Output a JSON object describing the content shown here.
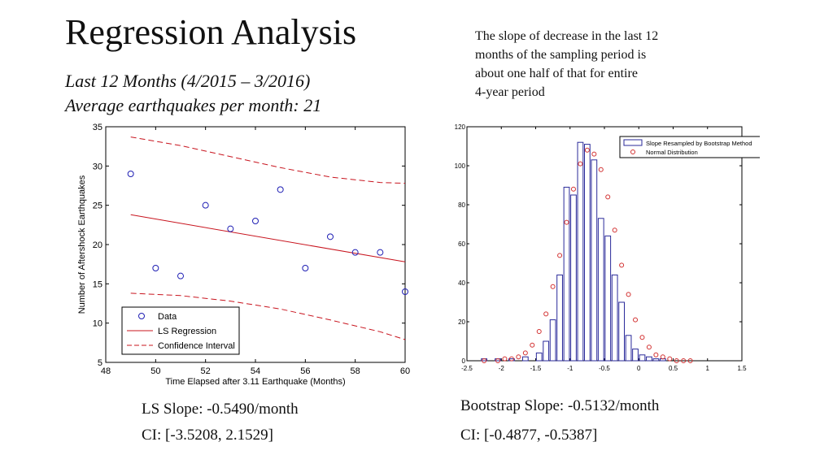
{
  "slide": {
    "title": "Regression Analysis",
    "subtitle_line1": "Last 12 Months (4/2015 – 3/2016)",
    "subtitle_line2": "Average earthquakes per month: 21",
    "note_lines": [
      "The slope of decrease in the last 12",
      "months of the sampling period is",
      "about one half of that for entire",
      "4-year period"
    ],
    "ls_slope": "LS Slope: -0.5490/month",
    "ls_ci": "CI: [-3.5208, 2.1529]",
    "bootstrap_slope": "Bootstrap Slope: -0.5132/month",
    "bootstrap_ci": "CI: [-0.4877, -0.5387]"
  },
  "colors": {
    "data_marker": "#1f1fb4",
    "regression": "#c8141e",
    "bars": "#2a2a9a",
    "normal": "#d23030",
    "axis": "#000000"
  },
  "chart_data": [
    {
      "type": "scatter",
      "xlabel": "Time Elapsed after 3.11 Earthquake (Months)",
      "ylabel": "Number of Aftershock Earthquakes",
      "xlim": [
        48,
        60
      ],
      "ylim": [
        5,
        35
      ],
      "xticks": [
        "48",
        "50",
        "52",
        "54",
        "56",
        "58",
        "60"
      ],
      "yticks": [
        "5",
        "10",
        "15",
        "20",
        "25",
        "30",
        "35"
      ],
      "legend_position": "bottom-left",
      "legend": [
        "Data",
        "LS Regression",
        "Confidence Interval"
      ],
      "points": [
        {
          "x": 49,
          "y": 29
        },
        {
          "x": 50,
          "y": 17
        },
        {
          "x": 51,
          "y": 16
        },
        {
          "x": 52,
          "y": 25
        },
        {
          "x": 53,
          "y": 22
        },
        {
          "x": 54,
          "y": 23
        },
        {
          "x": 55,
          "y": 27
        },
        {
          "x": 56,
          "y": 17
        },
        {
          "x": 57,
          "y": 21
        },
        {
          "x": 58,
          "y": 19
        },
        {
          "x": 59,
          "y": 19
        },
        {
          "x": 60,
          "y": 14
        }
      ],
      "regression": [
        [
          49,
          23.8
        ],
        [
          60,
          17.8
        ]
      ],
      "ci_upper": [
        [
          49,
          33.7
        ],
        [
          51,
          32.6
        ],
        [
          53,
          31.2
        ],
        [
          55,
          29.8
        ],
        [
          57,
          28.6
        ],
        [
          59,
          27.9
        ],
        [
          60,
          27.8
        ]
      ],
      "ci_lower": [
        [
          49,
          13.8
        ],
        [
          51,
          13.5
        ],
        [
          53,
          12.8
        ],
        [
          55,
          11.8
        ],
        [
          57,
          10.4
        ],
        [
          59,
          8.9
        ],
        [
          60,
          7.9
        ]
      ]
    },
    {
      "type": "bar",
      "title": "",
      "xlim": [
        -2.5,
        1.5
      ],
      "ylim": [
        0,
        120
      ],
      "xticks": [
        "-2.5",
        "-2",
        "-1.5",
        "-1",
        "-0.5",
        "0",
        "0.5",
        "1",
        "1.5"
      ],
      "yticks": [
        "0",
        "20",
        "40",
        "60",
        "80",
        "100",
        "120"
      ],
      "legend_position": "top-right",
      "legend": [
        "Slope Resampled by Bootstrap Method",
        "Normal Distribution"
      ],
      "bin_centers": [
        -2.25,
        -2.15,
        -2.05,
        -1.95,
        -1.85,
        -1.75,
        -1.65,
        -1.55,
        -1.45,
        -1.35,
        -1.25,
        -1.15,
        -1.05,
        -0.95,
        -0.85,
        -0.75,
        -0.65,
        -0.55,
        -0.45,
        -0.35,
        -0.25,
        -0.15,
        -0.05,
        0.05,
        0.15,
        0.25,
        0.35,
        0.45,
        0.55,
        0.65,
        0.75,
        0.85,
        0.95,
        1.05
      ],
      "bar_values": [
        1,
        0,
        1,
        0,
        1,
        0,
        2,
        0,
        4,
        10,
        21,
        44,
        89,
        85,
        112,
        111,
        103,
        73,
        64,
        44,
        30,
        13,
        6,
        3,
        2,
        1,
        1,
        0,
        0,
        0,
        0,
        0,
        0,
        0
      ],
      "bar_width": 0.08,
      "normal_points": [
        {
          "x": -2.25,
          "y": 0
        },
        {
          "x": -2.05,
          "y": 0
        },
        {
          "x": -1.95,
          "y": 1
        },
        {
          "x": -1.85,
          "y": 1
        },
        {
          "x": -1.75,
          "y": 2
        },
        {
          "x": -1.65,
          "y": 4
        },
        {
          "x": -1.55,
          "y": 8
        },
        {
          "x": -1.45,
          "y": 15
        },
        {
          "x": -1.35,
          "y": 24
        },
        {
          "x": -1.25,
          "y": 38
        },
        {
          "x": -1.15,
          "y": 54
        },
        {
          "x": -1.05,
          "y": 71
        },
        {
          "x": -0.95,
          "y": 88
        },
        {
          "x": -0.85,
          "y": 101
        },
        {
          "x": -0.75,
          "y": 108
        },
        {
          "x": -0.65,
          "y": 106
        },
        {
          "x": -0.55,
          "y": 98
        },
        {
          "x": -0.45,
          "y": 84
        },
        {
          "x": -0.35,
          "y": 67
        },
        {
          "x": -0.25,
          "y": 49
        },
        {
          "x": -0.15,
          "y": 34
        },
        {
          "x": -0.05,
          "y": 21
        },
        {
          "x": 0.05,
          "y": 12
        },
        {
          "x": 0.15,
          "y": 7
        },
        {
          "x": 0.25,
          "y": 3
        },
        {
          "x": 0.35,
          "y": 2
        },
        {
          "x": 0.45,
          "y": 1
        },
        {
          "x": 0.55,
          "y": 0
        },
        {
          "x": 0.65,
          "y": 0
        },
        {
          "x": 0.75,
          "y": 0
        }
      ]
    }
  ]
}
